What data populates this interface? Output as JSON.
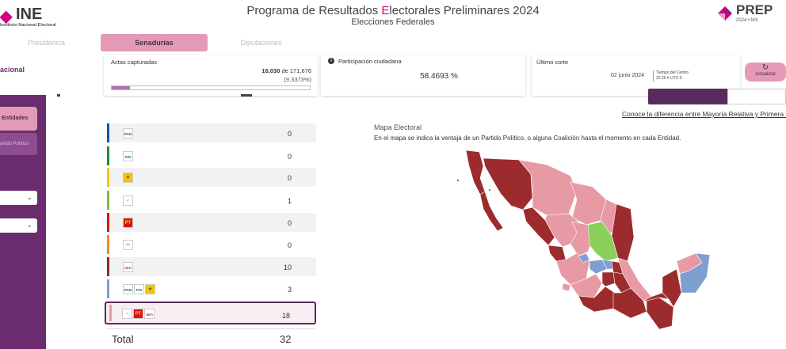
{
  "header": {
    "ine_mark": "◆",
    "ine_word": "INE",
    "ine_subtitle": "Instituto Nacional Electoral",
    "title_part1": "Programa de Resultados ",
    "title_accent": "E",
    "title_part2": "lectorales Preliminares 2024",
    "subtitle": "Elecciones Federales",
    "prep_word": "PREP",
    "prep_year": "2024 • MX"
  },
  "tabs": [
    {
      "label": "Presidencia"
    },
    {
      "label": "Senadurías"
    },
    {
      "label": "Diputaciones"
    }
  ],
  "sidebar": {
    "title": "acional",
    "button1": "Entidades",
    "button2": "artido Político"
  },
  "cards": {
    "actas": {
      "label": "Actas capturadas",
      "captured": "16,030",
      "of_text": " de 171,676",
      "percent": "(9.3373%)",
      "fill_fraction": 0.0934
    },
    "participacion": {
      "label": "Participación ciudadana",
      "value": "58.4693 %"
    },
    "corte": {
      "label": "Último corte",
      "date": "02 junio 2024",
      "tz_line1": "Tiempo del Centro",
      "tz_line2": "22:20 h UTC-6"
    },
    "refresh_label": "Actualizar"
  },
  "map": {
    "link": "Conoce la diferencia entre Mayoría Relativa y Primera M",
    "title": "Mapa Electoral",
    "description": "En el mapa se indica la ventaja de un Partido Político, o alguna Coalición hasta el momento en cada Entidad."
  },
  "parties": [
    {
      "color": "#0f55a8",
      "logos": [
        {
          "text": "PAN",
          "bg": "#ffffff",
          "fg": "#0f55a8"
        }
      ],
      "value": "0"
    },
    {
      "color": "#1f8a3a",
      "logos": [
        {
          "text": "PRI",
          "bg": "#ffffff",
          "fg": "#1f8a3a"
        }
      ],
      "value": "0"
    },
    {
      "color": "#f2c500",
      "logos": [
        {
          "text": "☀",
          "bg": "#f2c500",
          "fg": "#222222"
        }
      ],
      "value": "0"
    },
    {
      "color": "#7cbf3f",
      "logos": [
        {
          "text": "✓",
          "bg": "#ffffff",
          "fg": "#7cbf3f"
        }
      ],
      "value": "1"
    },
    {
      "color": "#d41515",
      "logos": [
        {
          "text": "PT",
          "bg": "#d41515",
          "fg": "#f2d200"
        }
      ],
      "value": "0"
    },
    {
      "color": "#f28b1f",
      "logos": [
        {
          "text": "✉",
          "bg": "#ffffff",
          "fg": "#f28b1f"
        }
      ],
      "value": "0"
    },
    {
      "color": "#8b2a2a",
      "logos": [
        {
          "text": "mrn",
          "bg": "#ffffff",
          "fg": "#a3232a"
        }
      ],
      "value": "10"
    },
    {
      "color": "#7f9fd0",
      "logos": [
        {
          "text": "PAN",
          "bg": "#ffffff",
          "fg": "#0f55a8"
        },
        {
          "text": "PRI",
          "bg": "#ffffff",
          "fg": "#1f8a3a"
        },
        {
          "text": "☀",
          "bg": "#f2c500",
          "fg": "#222222"
        }
      ],
      "value": "3"
    },
    {
      "color": "#e89aa4",
      "logos": [
        {
          "text": "✓",
          "bg": "#ffffff",
          "fg": "#7cbf3f"
        },
        {
          "text": "PT",
          "bg": "#d41515",
          "fg": "#f2d200"
        },
        {
          "text": "mrn",
          "bg": "#ffffff",
          "fg": "#a3232a"
        }
      ],
      "value": "18"
    }
  ],
  "total": {
    "label": "Total",
    "value": "32"
  },
  "colors": {
    "sidebar": "#6b2c6f",
    "accent_pink": "#e49ab7",
    "ine_magenta": "#d5007f",
    "morena_dark": "#9c2b2d",
    "coalition_pink": "#e89aa4",
    "pan_coalition_blue": "#7f9fd0",
    "pvem_green": "#8bd05a"
  }
}
